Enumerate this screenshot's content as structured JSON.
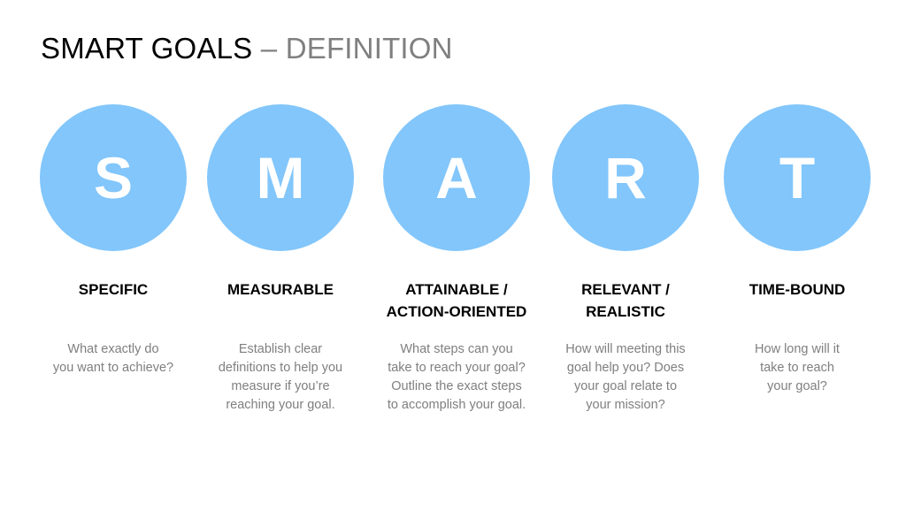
{
  "title": {
    "main": "SMART GOALS",
    "separator": "–",
    "sub": "DEFINITION"
  },
  "colors": {
    "circle": "#82c6fb",
    "letter": "#ffffff",
    "description": "#7f7f7f"
  },
  "items": [
    {
      "letter": "S",
      "label_lines": [
        "SPECIFIC",
        ""
      ],
      "desc_lines": [
        "What exactly do",
        "you want to achieve?",
        "",
        ""
      ]
    },
    {
      "letter": "M",
      "label_lines": [
        "MEASURABLE",
        ""
      ],
      "desc_lines": [
        "Establish clear",
        "definitions to help you",
        "measure if you’re",
        "reaching your goal."
      ]
    },
    {
      "letter": "A",
      "label_lines": [
        "ATTAINABLE /",
        "ACTION-ORIENTED"
      ],
      "desc_lines": [
        "What steps can you",
        "take to reach your goal?",
        "Outline the exact steps",
        "to accomplish your goal."
      ]
    },
    {
      "letter": "R",
      "label_lines": [
        "RELEVANT /",
        "REALISTIC"
      ],
      "desc_lines": [
        "How will meeting this",
        "goal help you? Does",
        "your goal relate to",
        "your mission?"
      ]
    },
    {
      "letter": "T",
      "label_lines": [
        "TIME-BOUND",
        ""
      ],
      "desc_lines": [
        "How long will it",
        "take to reach",
        "your goal?",
        ""
      ]
    }
  ]
}
